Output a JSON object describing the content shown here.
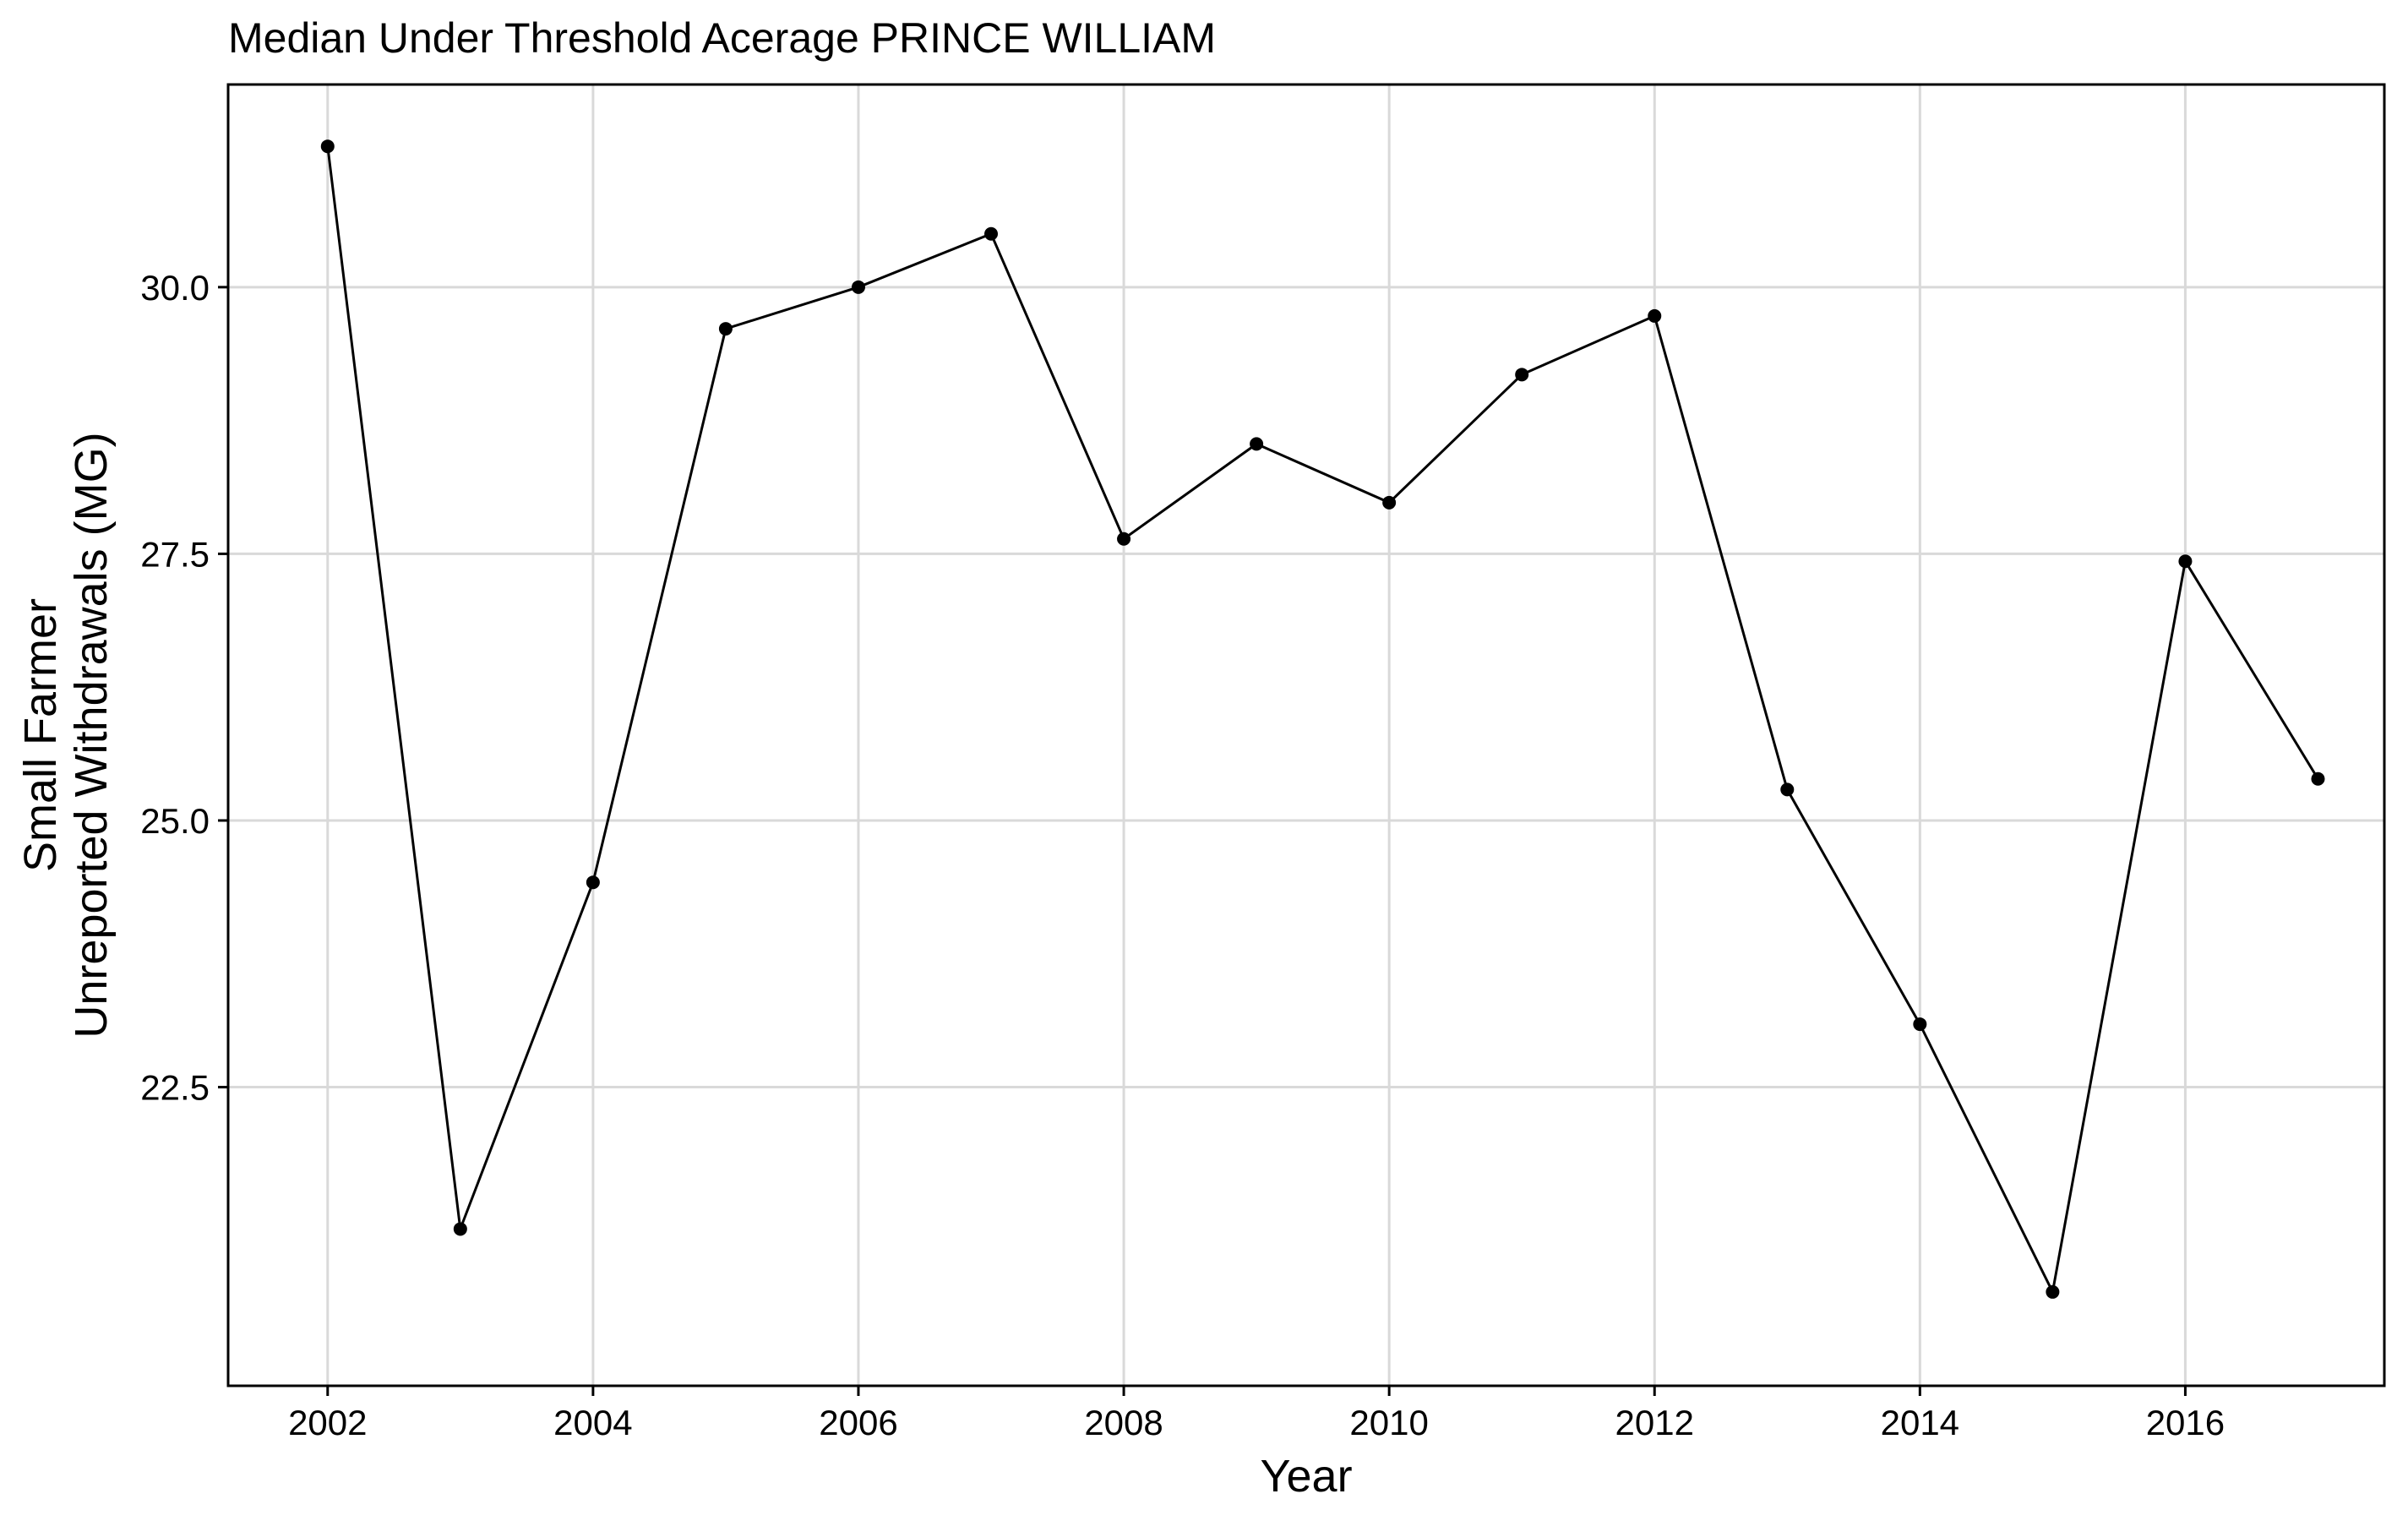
{
  "chart_data": {
    "type": "line",
    "title": "Median Under Threshold Acerage PRINCE WILLIAM",
    "xlabel": "Year",
    "ylabel_lines": [
      "Small Farmer",
      "Unreported Withdrawals (MG)"
    ],
    "x_ticks": [
      2002,
      2004,
      2006,
      2008,
      2010,
      2012,
      2014,
      2016
    ],
    "y_ticks": [
      "22.5",
      "25.0",
      "27.5",
      "30.0"
    ],
    "xlim": [
      2001.25,
      2017.5
    ],
    "ylim": [
      19.7,
      31.9
    ],
    "grid": true,
    "legend": "none",
    "series": [
      {
        "x": [
          2002,
          2003,
          2004,
          2005,
          2006,
          2007,
          2008,
          2009,
          2010,
          2011,
          2012,
          2013,
          2014,
          2015,
          2016,
          2017
        ],
        "y": [
          31.32,
          21.17,
          24.42,
          29.61,
          30.0,
          30.5,
          27.64,
          28.53,
          27.98,
          29.18,
          29.73,
          25.29,
          23.09,
          20.58,
          27.43,
          25.39
        ]
      }
    ],
    "colors": {
      "line": "#000000",
      "grid": "#d9d9d9",
      "background": "#ffffff"
    }
  }
}
